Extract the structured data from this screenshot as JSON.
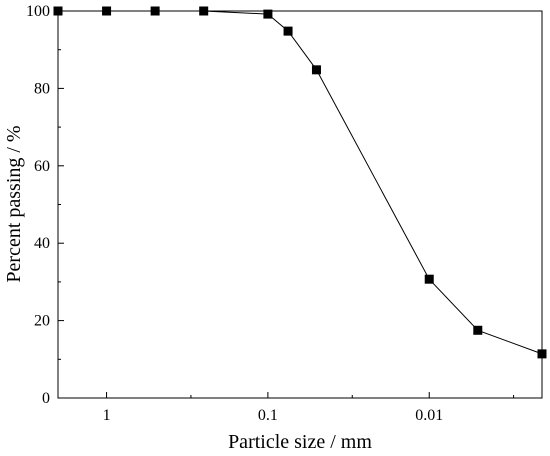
{
  "chart_data": {
    "type": "line",
    "xlabel": "Particle size / mm",
    "ylabel": "Percent passing / %",
    "x_scale": "log",
    "x_reversed": true,
    "xlim": [
      2,
      0.002
    ],
    "ylim": [
      0,
      100
    ],
    "grid": false,
    "legend": "none",
    "x_ticks": [
      {
        "value": 1,
        "label": "1"
      },
      {
        "value": 0.1,
        "label": "0.1"
      },
      {
        "value": 0.01,
        "label": "0.01"
      }
    ],
    "y_ticks": [
      {
        "value": 0,
        "label": "0"
      },
      {
        "value": 20,
        "label": "20"
      },
      {
        "value": 40,
        "label": "40"
      },
      {
        "value": 60,
        "label": "60"
      },
      {
        "value": 80,
        "label": "80"
      },
      {
        "value": 100,
        "label": "100"
      }
    ],
    "series": [
      {
        "marker": "square",
        "color": "#000000",
        "points": [
          {
            "x": 2,
            "y": 100
          },
          {
            "x": 1,
            "y": 100
          },
          {
            "x": 0.5,
            "y": 100
          },
          {
            "x": 0.25,
            "y": 100
          },
          {
            "x": 0.1,
            "y": 99.2
          },
          {
            "x": 0.075,
            "y": 94.8
          },
          {
            "x": 0.05,
            "y": 84.8
          },
          {
            "x": 0.01,
            "y": 30.7
          },
          {
            "x": 0.005,
            "y": 17.5
          },
          {
            "x": 0.002,
            "y": 11.4
          }
        ]
      }
    ]
  }
}
